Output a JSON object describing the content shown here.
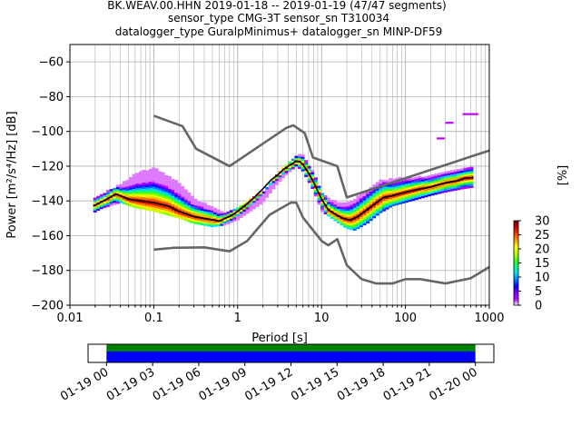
{
  "title_lines": [
    "BK.WEAV.00.HHN   2019-01-18 -- 2019-01-19  (47/47 segments)",
    "sensor_type CMG-3T sensor_sn T310034",
    "datalogger_type GuralpMinimus+ datalogger_sn MINP-DF59"
  ],
  "chart_data": [
    {
      "type": "heatmap",
      "subtype": "probabilistic-power-spectral-density",
      "xlabel": "Period [s]",
      "ylabel": "Power [m²/s⁴/Hz] [dB]",
      "xscale": "log",
      "xlim": [
        0.01,
        1000
      ],
      "ylim": [
        -200,
        -50
      ],
      "x_ticks": [
        {
          "value": 0.01,
          "label": "0.01"
        },
        {
          "value": 0.1,
          "label": "0.1"
        },
        {
          "value": 1,
          "label": "1"
        },
        {
          "value": 10,
          "label": "10"
        },
        {
          "value": 100,
          "label": "100"
        },
        {
          "value": 1000,
          "label": "1000"
        }
      ],
      "y_ticks": [
        -60,
        -80,
        -100,
        -120,
        -140,
        -160,
        -180,
        -200
      ],
      "grid": true,
      "noise_models": [
        {
          "label": "",
          "color": "#666666",
          "points": [
            [
              0.1,
              -91
            ],
            [
              0.22,
              -97
            ],
            [
              0.32,
              -110
            ],
            [
              0.8,
              -120
            ],
            [
              3.8,
              -98
            ],
            [
              4.6,
              -96.5
            ],
            [
              6.3,
              -101
            ],
            [
              7.9,
              -115
            ],
            [
              15.4,
              -120
            ],
            [
              20,
              -138
            ],
            [
              1000,
              -111
            ]
          ]
        },
        {
          "label": "",
          "color": "#666666",
          "points": [
            [
              0.1,
              -168
            ],
            [
              0.17,
              -167
            ],
            [
              0.4,
              -166.7
            ],
            [
              0.8,
              -169
            ],
            [
              1.3,
              -163
            ],
            [
              2.4,
              -148
            ],
            [
              4.3,
              -141
            ],
            [
              5,
              -141
            ],
            [
              6,
              -149.5
            ],
            [
              10,
              -163
            ],
            [
              12,
              -165.5
            ],
            [
              15.4,
              -162
            ],
            [
              20,
              -177
            ],
            [
              30,
              -185
            ],
            [
              45,
              -187.5
            ],
            [
              70,
              -187.5
            ],
            [
              100,
              -185
            ],
            [
              150,
              -185
            ],
            [
              300,
              -187.5
            ],
            [
              600,
              -184.5
            ],
            [
              1000,
              -178
            ]
          ]
        }
      ],
      "mean_curve": {
        "color": "#000000",
        "points": [
          [
            0.019,
            -143
          ],
          [
            0.025,
            -140
          ],
          [
            0.03,
            -138
          ],
          [
            0.035,
            -136
          ],
          [
            0.042,
            -137.5
          ],
          [
            0.05,
            -139
          ],
          [
            0.07,
            -140
          ],
          [
            0.1,
            -141
          ],
          [
            0.15,
            -143
          ],
          [
            0.2,
            -146
          ],
          [
            0.3,
            -149
          ],
          [
            0.45,
            -150.5
          ],
          [
            0.6,
            -151.5
          ],
          [
            0.8,
            -149
          ],
          [
            1,
            -146
          ],
          [
            1.5,
            -139
          ],
          [
            2,
            -133
          ],
          [
            2.5,
            -128
          ],
          [
            3,
            -125
          ],
          [
            3.5,
            -122
          ],
          [
            4,
            -120
          ],
          [
            4.5,
            -118.5
          ],
          [
            5,
            -117
          ],
          [
            5.5,
            -117.5
          ],
          [
            6,
            -119
          ],
          [
            7,
            -124
          ],
          [
            8,
            -129
          ],
          [
            10,
            -139
          ],
          [
            12,
            -145
          ],
          [
            15,
            -148
          ],
          [
            18,
            -150
          ],
          [
            22,
            -151
          ],
          [
            27,
            -149
          ],
          [
            35,
            -145
          ],
          [
            45,
            -141
          ],
          [
            55,
            -138
          ],
          [
            70,
            -137
          ],
          [
            100,
            -135
          ],
          [
            150,
            -133
          ],
          [
            200,
            -132
          ],
          [
            300,
            -129.5
          ],
          [
            400,
            -128.5
          ],
          [
            500,
            -127
          ],
          [
            650,
            -126.5
          ]
        ]
      },
      "density_bands": [
        {
          "x": [
            0.019,
            0.025,
            0.03,
            0.04,
            0.06,
            0.1,
            0.2,
            0.3,
            0.5,
            0.7,
            1,
            2,
            3,
            4,
            5,
            6,
            8,
            10,
            15,
            20,
            25,
            35,
            50,
            70,
            100,
            200,
            300,
            500,
            700
          ],
          "low": [
            -147,
            -144,
            -143,
            -141,
            -144,
            -146,
            -150,
            -153,
            -155,
            -154,
            -151,
            -141,
            -130,
            -124,
            -120,
            -123,
            -134,
            -146,
            -152,
            -156,
            -157,
            -153,
            -147,
            -143,
            -141,
            -137,
            -135,
            -133,
            -132
          ],
          "high": [
            -139,
            -136,
            -134,
            -131,
            -125,
            -121,
            -130,
            -139,
            -144,
            -148,
            -145,
            -135,
            -125,
            -118,
            -114,
            -114,
            -124,
            -136,
            -141,
            -141,
            -139,
            -134,
            -128,
            -128,
            -127,
            -126,
            -124,
            -122,
            -120
          ]
        }
      ],
      "sparse_high_cells": [
        [
          260,
          -104
        ],
        [
          330,
          -95
        ],
        [
          530,
          -90
        ],
        [
          650,
          -90
        ]
      ]
    },
    {
      "type": "colorbar",
      "label": "[%]",
      "ticks": [
        0,
        5,
        10,
        15,
        20,
        25,
        30
      ],
      "range": [
        0,
        30
      ],
      "colormap": [
        "#ffffff",
        "#c000ff",
        "#7c00ff",
        "#0000ff",
        "#0080ff",
        "#00e0ff",
        "#00ff80",
        "#40ff00",
        "#c0ff00",
        "#ffff00",
        "#ffa000",
        "#ff4000",
        "#d00000",
        "#800000"
      ]
    },
    {
      "type": "timeline",
      "ticks": [
        "01-19 00",
        "01-19 03",
        "01-19 06",
        "01-19 09",
        "01-19 12",
        "01-19 15",
        "01-19 18",
        "01-19 21",
        "01-20 00"
      ],
      "coverage": [
        {
          "series": "",
          "color": "#008000",
          "start_hour": 0,
          "end_hour": 24
        },
        {
          "series": "",
          "color": "#0000ff",
          "start_hour": 0,
          "end_hour": 24
        }
      ],
      "xlim_hours": [
        -1.2,
        25.2
      ]
    }
  ]
}
